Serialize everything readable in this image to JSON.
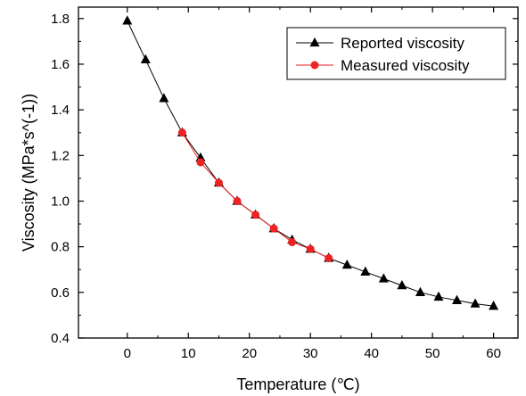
{
  "chart_data": {
    "type": "line",
    "title": "",
    "xlabel": "Temperature (℃)",
    "ylabel": "Viscosity (MPa*s^(-1))",
    "xlim": [
      -8,
      64
    ],
    "ylim": [
      0.4,
      1.85
    ],
    "xticks": [
      0,
      10,
      20,
      30,
      40,
      50,
      60
    ],
    "xtick_labels": [
      "0",
      "10",
      "20",
      "30",
      "40",
      "50",
      "60"
    ],
    "yticks": [
      0.4,
      0.6,
      0.8,
      1.0,
      1.2,
      1.4,
      1.6,
      1.8
    ],
    "ytick_labels": [
      "0.4",
      "0.6",
      "0.8",
      "1.0",
      "1.2",
      "1.4",
      "1.6",
      "1.8"
    ],
    "grid": false,
    "legend_position": "top-right",
    "series": [
      {
        "name": "Reported viscosity",
        "marker": "triangle",
        "color": "#000000",
        "x": [
          0,
          3,
          6,
          9,
          12,
          15,
          18,
          21,
          24,
          27,
          30,
          33,
          36,
          39,
          42,
          45,
          48,
          51,
          54,
          57,
          60
        ],
        "y": [
          1.79,
          1.62,
          1.45,
          1.3,
          1.19,
          1.08,
          1.0,
          0.94,
          0.88,
          0.83,
          0.79,
          0.75,
          0.72,
          0.69,
          0.66,
          0.63,
          0.6,
          0.58,
          0.565,
          0.55,
          0.54
        ]
      },
      {
        "name": "Measured viscosity",
        "marker": "circle",
        "color": "#ee2222",
        "x": [
          9,
          12,
          15,
          18,
          21,
          24,
          27,
          30,
          33
        ],
        "y": [
          1.3,
          1.17,
          1.08,
          1.0,
          0.94,
          0.88,
          0.82,
          0.79,
          0.75
        ]
      }
    ]
  }
}
